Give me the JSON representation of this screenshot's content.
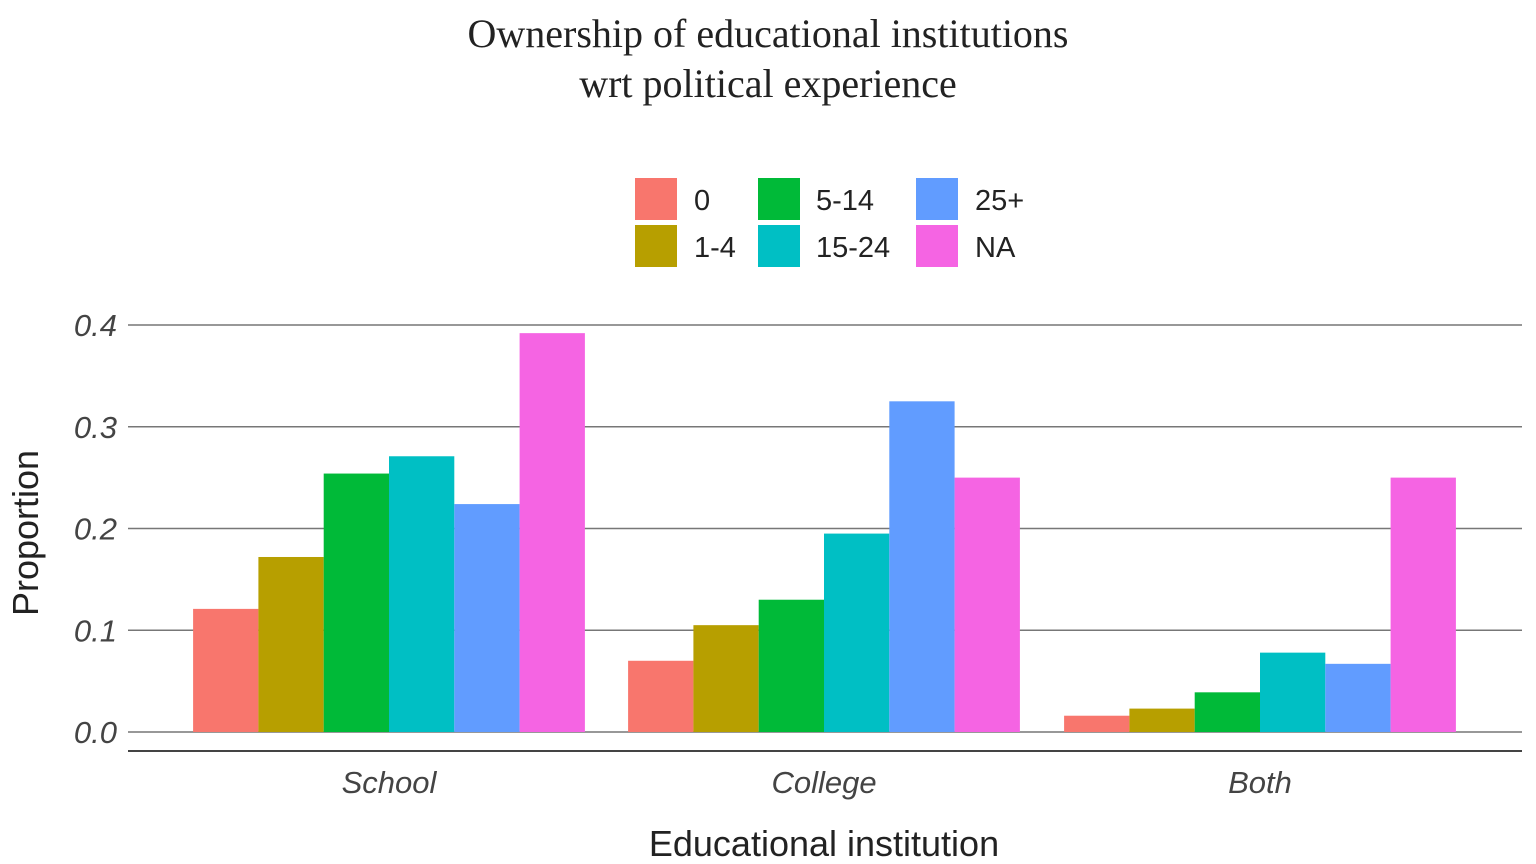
{
  "chart_data": {
    "type": "bar",
    "title_line1": "Ownership of educational institutions",
    "title_line2": "wrt political experience",
    "xlabel": "Educational institution",
    "ylabel": "Proportion",
    "ylim": [
      0,
      0.4
    ],
    "yticks": [
      "0.0",
      "0.1",
      "0.2",
      "0.3",
      "0.4"
    ],
    "categories": [
      "School",
      "College",
      "Both"
    ],
    "legend_position": "top",
    "grid": true,
    "series": [
      {
        "name": "0",
        "color": "#F8766D",
        "values": [
          0.121,
          0.07,
          0.016
        ]
      },
      {
        "name": "1-4",
        "color": "#B79F00",
        "values": [
          0.172,
          0.105,
          0.023
        ]
      },
      {
        "name": "5-14",
        "color": "#00BA38",
        "values": [
          0.254,
          0.13,
          0.039
        ]
      },
      {
        "name": "15-24",
        "color": "#00BFC4",
        "values": [
          0.271,
          0.195,
          0.078
        ]
      },
      {
        "name": "25+",
        "color": "#619CFF",
        "values": [
          0.224,
          0.325,
          0.067
        ]
      },
      {
        "name": "NA",
        "color": "#F564E3",
        "values": [
          0.392,
          0.25,
          0.25
        ]
      }
    ]
  }
}
